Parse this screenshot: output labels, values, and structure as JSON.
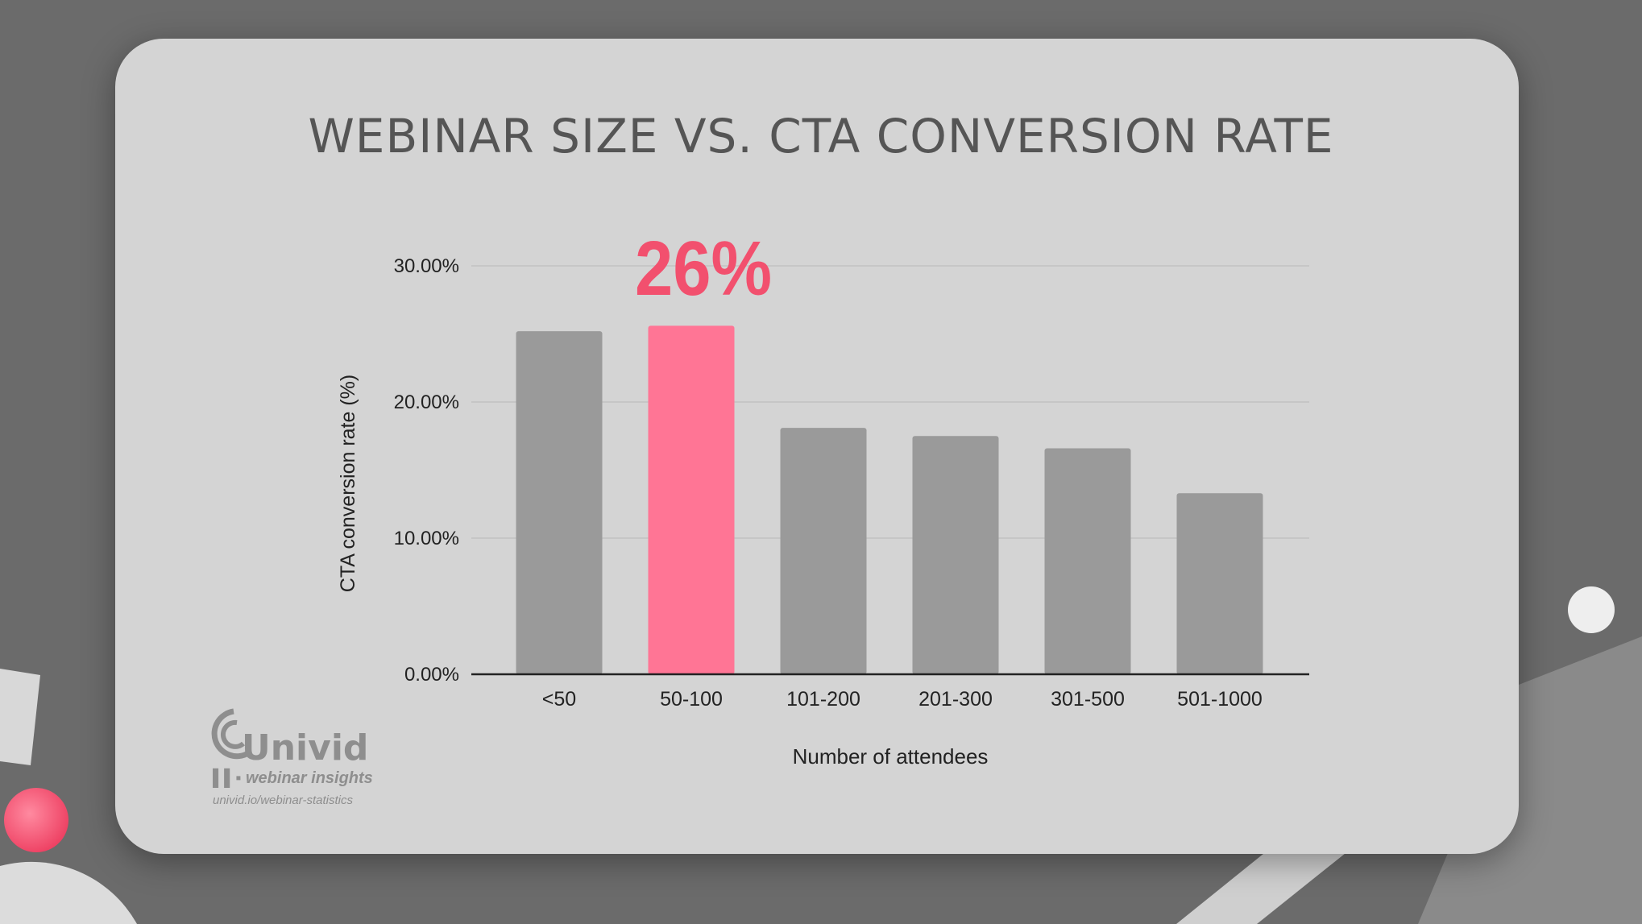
{
  "chart_data": {
    "type": "bar",
    "title": "WEBINAR SIZE VS. CTA CONVERSION RATE",
    "xlabel": "Number of attendees",
    "ylabel": "CTA conversion rate (%)",
    "categories": [
      "<50",
      "50-100",
      "101-200",
      "201-300",
      "301-500",
      "501-1000"
    ],
    "values": [
      25.2,
      25.6,
      18.1,
      17.5,
      16.6,
      13.3
    ],
    "ylim": [
      0,
      30
    ],
    "yticks": [
      0,
      10,
      20,
      30
    ],
    "ytick_labels": [
      "0.00%",
      "10.00%",
      "20.00%",
      "30.00%"
    ],
    "grid": true,
    "highlight_index": 1,
    "annotation": "26%",
    "colors": {
      "bar": "#9a9a9a",
      "highlight": "#ff7595",
      "annotation": "#f2506e"
    }
  },
  "logo": {
    "name": "Univid",
    "tagline": "webinar insights",
    "url": "univid.io/webinar-statistics"
  }
}
